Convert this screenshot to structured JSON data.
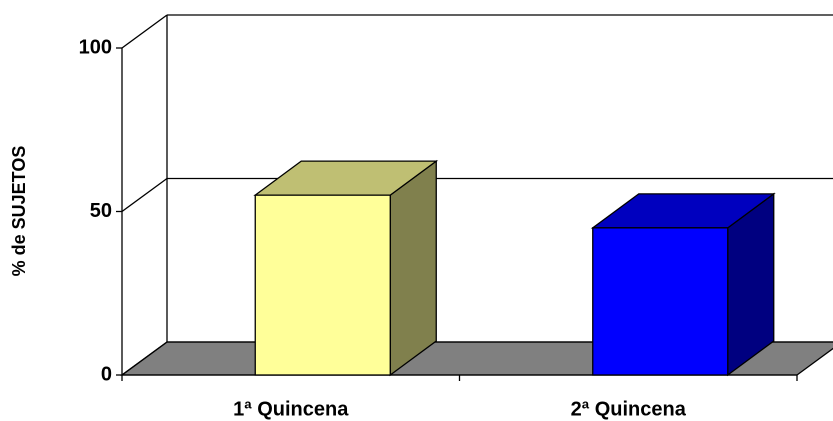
{
  "chart_data": {
    "type": "bar",
    "y_label": "% de SUJETOS",
    "categories": [
      "1ª Quincena",
      "2ª Quincena"
    ],
    "values": [
      55,
      45
    ],
    "colors": [
      "#FFFF99",
      "#0000FF"
    ],
    "ylim": [
      0,
      100
    ],
    "yticks": [
      0,
      50,
      100
    ],
    "grid": true,
    "floor_color": "#808080"
  }
}
